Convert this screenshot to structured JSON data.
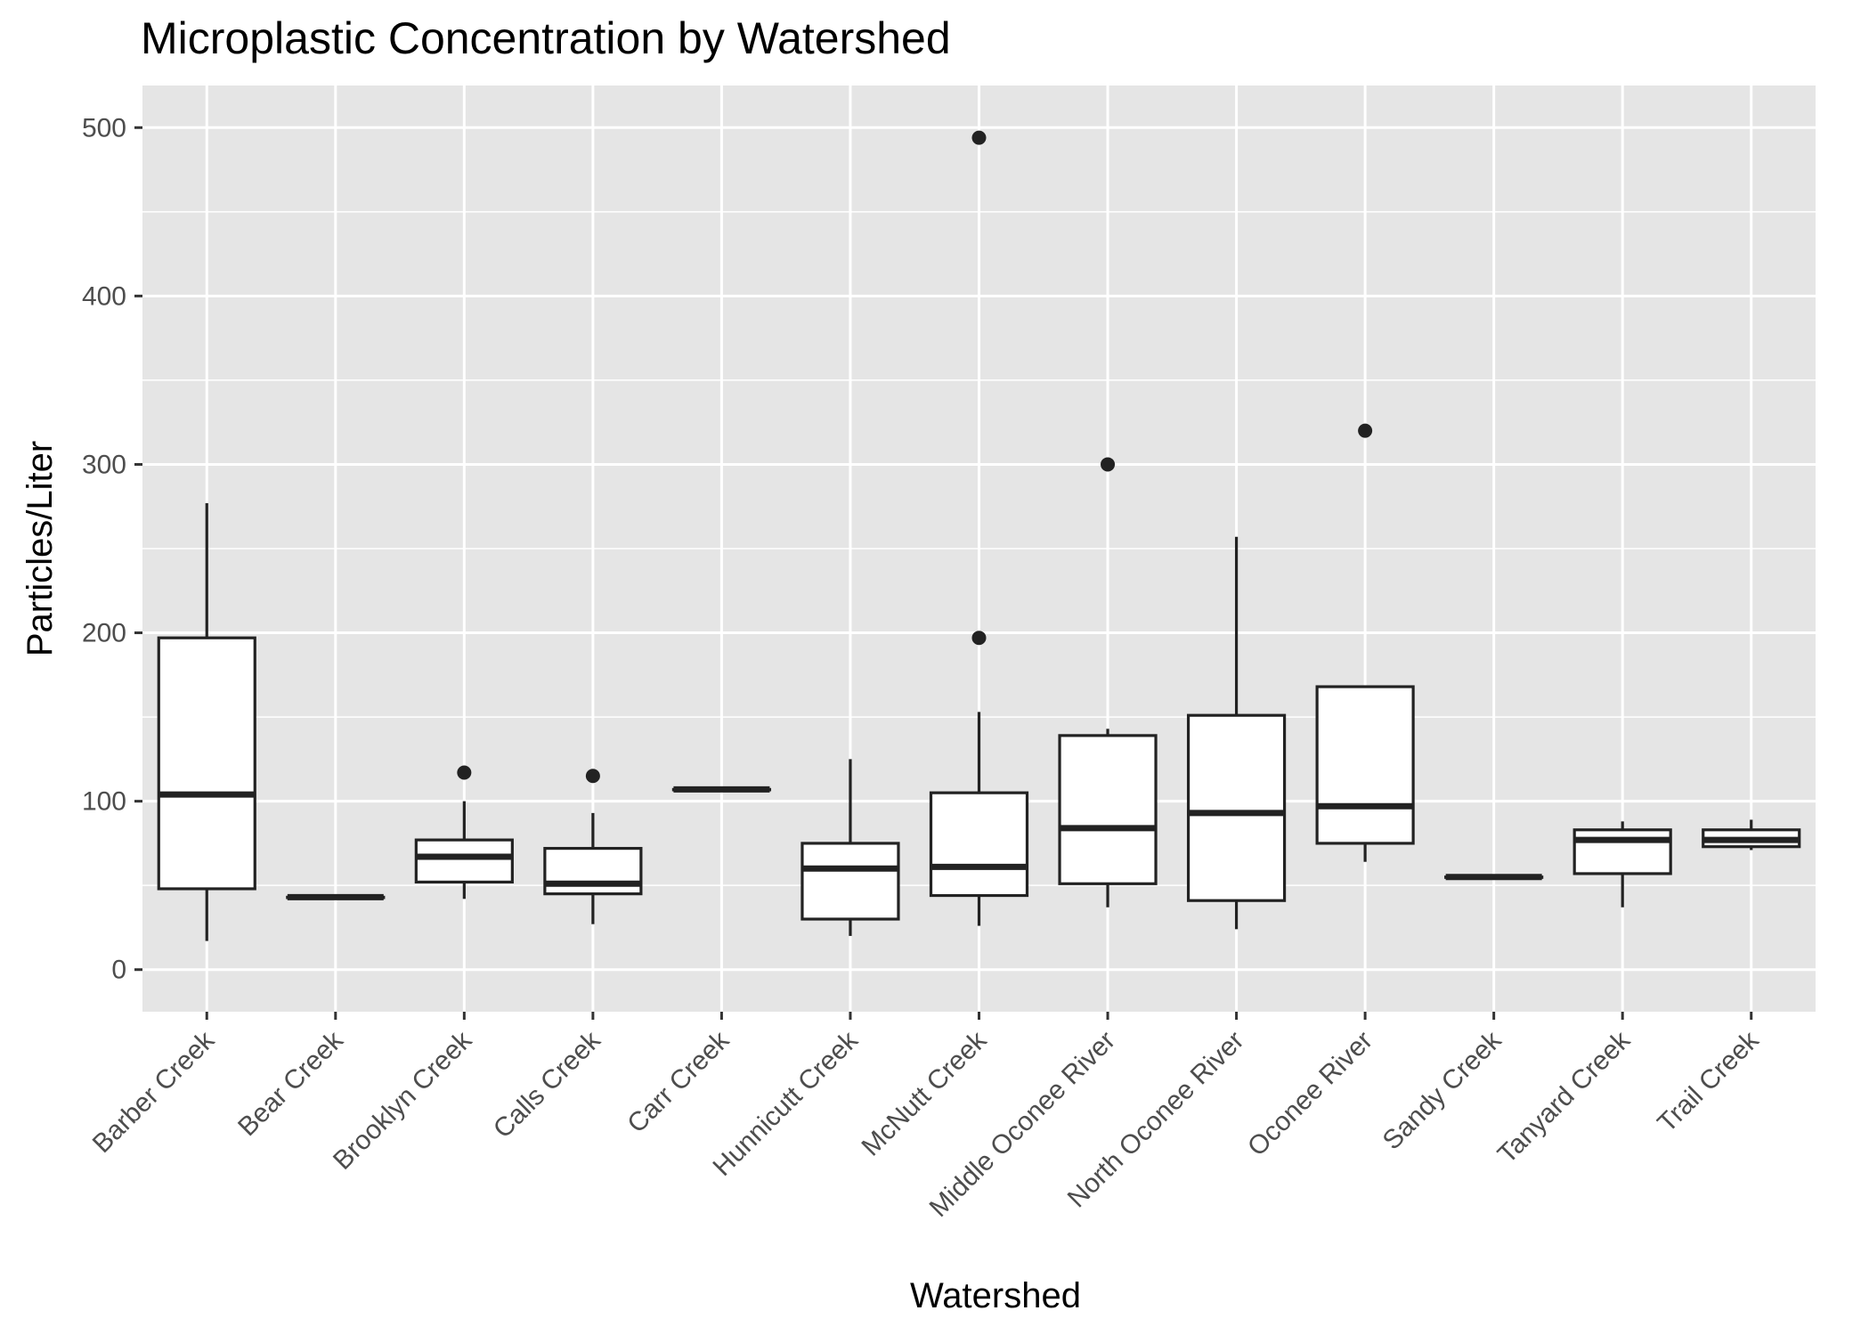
{
  "chart_data": {
    "type": "boxplot",
    "title": "Microplastic Concentration by Watershed",
    "xlabel": "Watershed",
    "ylabel": "Particles/Liter",
    "ylim": [
      -25,
      525
    ],
    "yticks": [
      0,
      100,
      200,
      300,
      400,
      500
    ],
    "grid": true,
    "categories": [
      {
        "name": "Barber Creek",
        "low": 17,
        "q1": 48,
        "median": 104,
        "q3": 197,
        "high": 277,
        "outliers": []
      },
      {
        "name": "Bear Creek",
        "low": 43,
        "q1": 43,
        "median": 43,
        "q3": 43,
        "high": 43,
        "outliers": []
      },
      {
        "name": "Brooklyn Creek",
        "low": 42,
        "q1": 52,
        "median": 67,
        "q3": 77,
        "high": 100,
        "outliers": [
          117
        ]
      },
      {
        "name": "Calls Creek",
        "low": 27,
        "q1": 45,
        "median": 51,
        "q3": 72,
        "high": 93,
        "outliers": [
          115
        ]
      },
      {
        "name": "Carr Creek",
        "low": 107,
        "q1": 107,
        "median": 107,
        "q3": 107,
        "high": 107,
        "outliers": []
      },
      {
        "name": "Hunnicutt Creek",
        "low": 20,
        "q1": 30,
        "median": 60,
        "q3": 75,
        "high": 125,
        "outliers": []
      },
      {
        "name": "McNutt Creek",
        "low": 26,
        "q1": 44,
        "median": 61,
        "q3": 105,
        "high": 153,
        "outliers": [
          197,
          494
        ]
      },
      {
        "name": "Middle Oconee River",
        "low": 37,
        "q1": 51,
        "median": 84,
        "q3": 139,
        "high": 143,
        "outliers": [
          300
        ]
      },
      {
        "name": "North Oconee River",
        "low": 24,
        "q1": 41,
        "median": 93,
        "q3": 151,
        "high": 257,
        "outliers": []
      },
      {
        "name": "Oconee River",
        "low": 64,
        "q1": 75,
        "median": 97,
        "q3": 168,
        "high": 168,
        "outliers": [
          320
        ]
      },
      {
        "name": "Sandy Creek",
        "low": 55,
        "q1": 55,
        "median": 55,
        "q3": 55,
        "high": 55,
        "outliers": []
      },
      {
        "name": "Tanyard Creek",
        "low": 37,
        "q1": 57,
        "median": 77,
        "q3": 83,
        "high": 88,
        "outliers": []
      },
      {
        "name": "Trail Creek",
        "low": 71,
        "q1": 73,
        "median": 77,
        "q3": 83,
        "high": 89,
        "outliers": []
      }
    ]
  },
  "colors": {
    "panel": "#e5e5e5",
    "grid": "#ffffff",
    "box_fill": "#ffffff",
    "box_stroke": "#222222",
    "tick_text": "#4d4d4d"
  }
}
